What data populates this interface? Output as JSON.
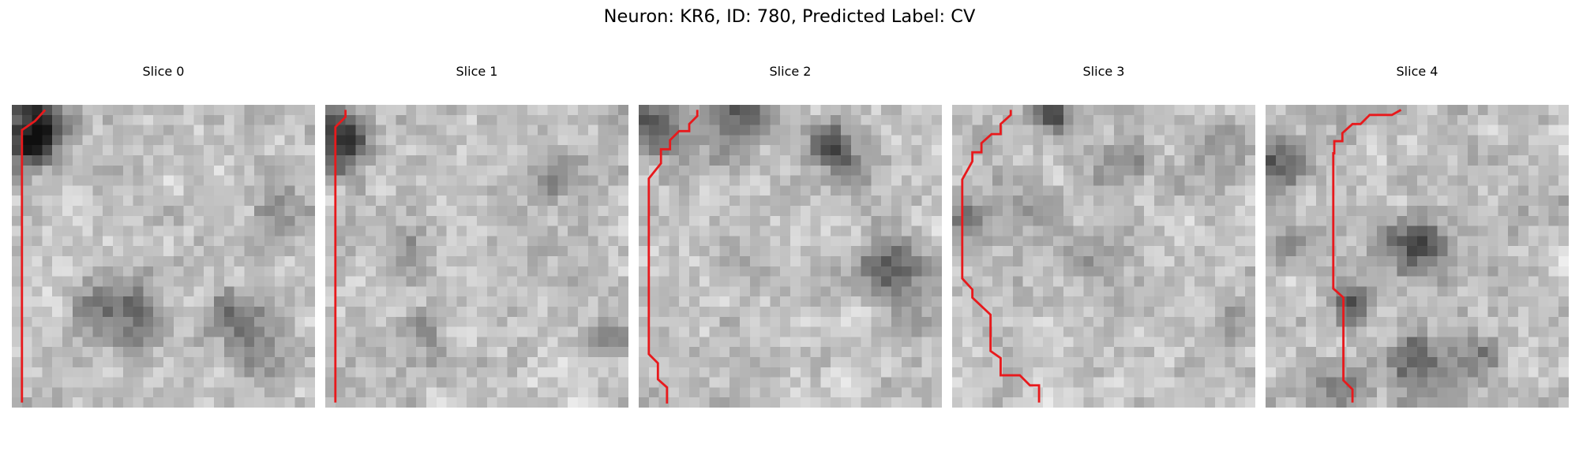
{
  "figure": {
    "title": "Neuron: KR6, ID: 780, Predicted Label: CV"
  },
  "colors": {
    "trace": "#e8191c",
    "background": "#ffffff"
  },
  "panels": [
    {
      "title": "Slice 0",
      "seed": 11,
      "dark_spots": [
        [
          2.5,
          1.5,
          2.2,
          130
        ],
        [
          1.5,
          4,
          1.8,
          90
        ],
        [
          12,
          21,
          2.3,
          95
        ],
        [
          21.5,
          21,
          1.8,
          80
        ],
        [
          26,
          10,
          1.8,
          55
        ],
        [
          8,
          20,
          1.5,
          55
        ],
        [
          25,
          24,
          1.8,
          60
        ]
      ],
      "trace_path": [
        [
          3.3,
          0.5
        ],
        [
          2.3,
          1.6
        ],
        [
          1.0,
          2.5
        ],
        [
          1.0,
          29.5
        ]
      ]
    },
    {
      "title": "Slice 1",
      "seed": 23,
      "dark_spots": [
        [
          2,
          4,
          1.8,
          140
        ],
        [
          0.8,
          1.5,
          1.5,
          70
        ],
        [
          23,
          8,
          1.8,
          40
        ],
        [
          28,
          23,
          1.5,
          60
        ],
        [
          8.5,
          14,
          1.5,
          35
        ],
        [
          10,
          23,
          1.8,
          40
        ]
      ],
      "trace_path": [
        [
          2.0,
          0.5
        ],
        [
          2.0,
          1.2
        ],
        [
          1.0,
          2.2
        ],
        [
          1.0,
          29.5
        ]
      ]
    },
    {
      "title": "Slice 2",
      "seed": 37,
      "dark_spots": [
        [
          10,
          1.2,
          2.2,
          110
        ],
        [
          1.5,
          2.2,
          2.0,
          100
        ],
        [
          19,
          4,
          1.5,
          120
        ],
        [
          25,
          16,
          2.0,
          95
        ],
        [
          21,
          6.5,
          1.2,
          60
        ],
        [
          27,
          21.5,
          1.5,
          50
        ]
      ],
      "trace_path": [
        [
          5.8,
          0.5
        ],
        [
          5.8,
          1.1
        ],
        [
          5.0,
          1.9
        ],
        [
          5.0,
          2.6
        ],
        [
          4.0,
          2.6
        ],
        [
          3.1,
          3.5
        ],
        [
          3.1,
          4.4
        ],
        [
          2.2,
          4.4
        ],
        [
          2.2,
          5.8
        ],
        [
          1.0,
          7.3
        ],
        [
          1.0,
          24.7
        ],
        [
          1.9,
          25.6
        ],
        [
          1.9,
          27.2
        ],
        [
          2.8,
          28.0
        ],
        [
          2.8,
          29.6
        ]
      ]
    },
    {
      "title": "Slice 3",
      "seed": 51,
      "dark_spots": [
        [
          10,
          0.6,
          1.2,
          140
        ],
        [
          17,
          5.5,
          1.8,
          60
        ],
        [
          26,
          4.5,
          1.8,
          55
        ],
        [
          2,
          11,
          1.5,
          50
        ],
        [
          7,
          10,
          1.8,
          40
        ],
        [
          28,
          22,
          1.6,
          50
        ],
        [
          14,
          15,
          2.0,
          40
        ]
      ],
      "trace_path": [
        [
          5.8,
          0.5
        ],
        [
          5.8,
          1.0
        ],
        [
          4.8,
          1.9
        ],
        [
          4.8,
          2.9
        ],
        [
          3.9,
          2.9
        ],
        [
          2.9,
          3.8
        ],
        [
          2.9,
          4.7
        ],
        [
          2.0,
          4.7
        ],
        [
          2.0,
          5.6
        ],
        [
          1.0,
          7.4
        ],
        [
          1.0,
          17.2
        ],
        [
          2.0,
          18.3
        ],
        [
          2.0,
          19.1
        ],
        [
          3.8,
          20.8
        ],
        [
          3.8,
          24.4
        ],
        [
          4.8,
          25.1
        ],
        [
          4.8,
          26.8
        ],
        [
          6.7,
          26.8
        ],
        [
          7.7,
          27.8
        ],
        [
          8.6,
          27.8
        ],
        [
          8.6,
          29.5
        ]
      ]
    },
    {
      "title": "Slice 4",
      "seed": 67,
      "dark_spots": [
        [
          1.5,
          6,
          2.0,
          95
        ],
        [
          15,
          14,
          2.0,
          110
        ],
        [
          8.5,
          19.5,
          1.4,
          120
        ],
        [
          15,
          25.5,
          1.9,
          120
        ],
        [
          21,
          25,
          1.5,
          75
        ],
        [
          3,
          14,
          1.3,
          50
        ],
        [
          8,
          27.5,
          2.0,
          60
        ]
      ],
      "trace_path": [
        [
          13.4,
          0.5
        ],
        [
          12.5,
          1.0
        ],
        [
          10.3,
          1.0
        ],
        [
          9.4,
          1.9
        ],
        [
          8.6,
          1.9
        ],
        [
          7.6,
          2.8
        ],
        [
          7.6,
          3.6
        ],
        [
          6.8,
          3.6
        ],
        [
          6.8,
          4.8
        ],
        [
          6.7,
          4.8
        ],
        [
          6.7,
          18.2
        ],
        [
          7.7,
          19.1
        ],
        [
          7.7,
          27.3
        ],
        [
          8.6,
          28.2
        ],
        [
          8.6,
          29.5
        ]
      ]
    }
  ]
}
